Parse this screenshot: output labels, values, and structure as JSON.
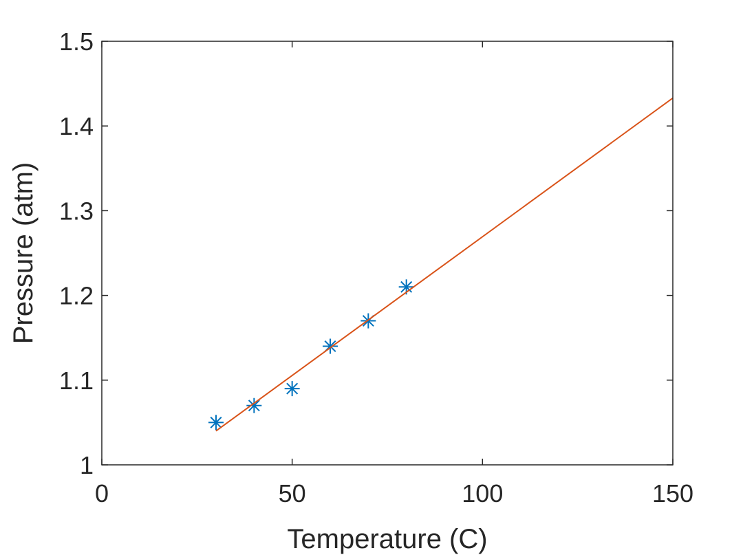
{
  "chart_data": {
    "type": "scatter",
    "title": "",
    "xlabel": "Temperature (C)",
    "ylabel": "Pressure (atm)",
    "xlim": [
      0,
      150
    ],
    "ylim": [
      1,
      1.5
    ],
    "xticks": [
      "0",
      "50",
      "100",
      "150"
    ],
    "yticks": [
      "1",
      "1.1",
      "1.2",
      "1.3",
      "1.4",
      "1.5"
    ],
    "grid": false,
    "series": [
      {
        "type": "scatter",
        "marker": "asterisk",
        "color": "#0072BD",
        "x": [
          30,
          40,
          50,
          60,
          70,
          80
        ],
        "y": [
          1.05,
          1.07,
          1.09,
          1.14,
          1.17,
          1.21
        ]
      },
      {
        "type": "line",
        "color": "#D95319",
        "x": [
          30,
          150
        ],
        "y": [
          1.04,
          1.433
        ]
      }
    ]
  }
}
